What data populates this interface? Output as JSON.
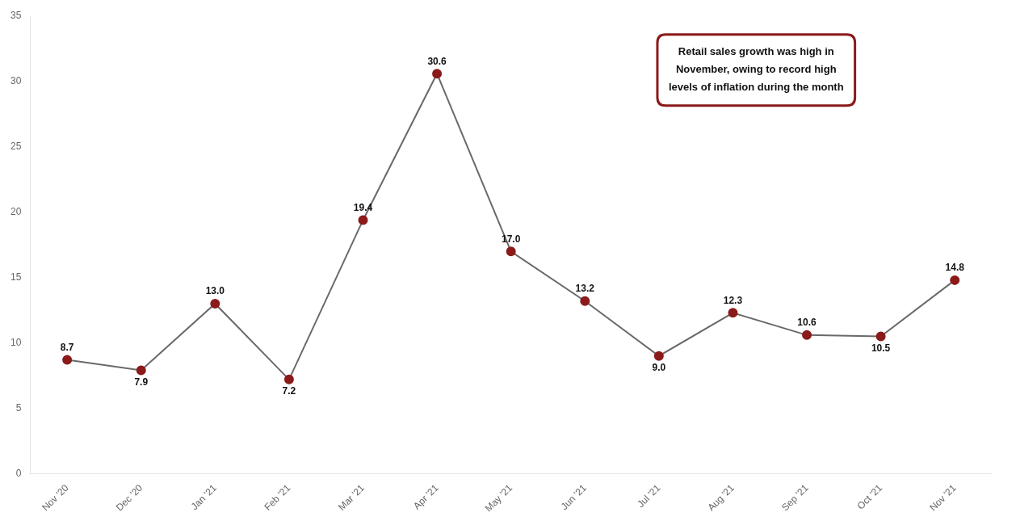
{
  "chart_data": {
    "type": "line",
    "categories": [
      "Nov '20",
      "Dec '20",
      "Jan '21",
      "Feb '21",
      "Mar '21",
      "Apr '21",
      "May '21",
      "Jun '21",
      "Jul '21",
      "Aug '21",
      "Sep '21",
      "Oct '21",
      "Nov '21"
    ],
    "values": [
      8.7,
      7.9,
      13.0,
      7.2,
      19.4,
      30.6,
      17.0,
      13.2,
      9.0,
      12.3,
      10.6,
      10.5,
      14.8
    ],
    "value_labels": [
      "8.7",
      "7.9",
      "13.0",
      "7.2",
      "19.4",
      "30.6",
      "17.0",
      "13.2",
      "9.0",
      "12.3",
      "10.6",
      "10.5",
      "14.8"
    ],
    "data_labels": true,
    "color": "#696969",
    "colors": [
      "#8B1A1A",
      "#8B1A1A",
      "#8B1A1A",
      "#8B1A1A",
      "#8B1A1A",
      "#8B1A1A",
      "#8B1A1A",
      "#8B1A1A",
      "#8B1A1A",
      "#8B1A1A",
      "#8B1A1A",
      "#8B1A1A",
      "#8B1A1A"
    ],
    "marker": "circle",
    "ylim": [
      0,
      35
    ],
    "yticks": [
      0,
      5,
      10,
      15,
      20,
      25,
      30,
      35
    ],
    "grid": false,
    "annotations": [
      {
        "text": "Retail sales growth was high in\nNovember, owing to record high\nlevels of inflation during the month",
        "color": "#8B1A1A"
      }
    ]
  }
}
